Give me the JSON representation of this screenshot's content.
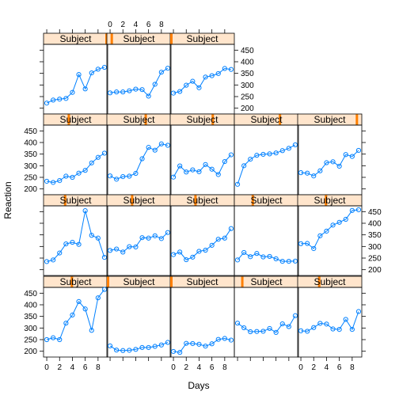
{
  "chart_data": {
    "type": "line",
    "xlabel": "Days",
    "ylabel": "Reaction",
    "strip_label": "Subject",
    "xlim": [
      -0.5,
      9.5
    ],
    "ylim": [
      175,
      475
    ],
    "x_ticks": [
      0,
      2,
      4,
      6,
      8
    ],
    "y_ticks": [
      200,
      250,
      300,
      350,
      400,
      450
    ],
    "x": [
      0,
      1,
      2,
      3,
      4,
      5,
      6,
      7,
      8,
      9
    ],
    "colors": {
      "strip_bg": "#ffe5cc",
      "strip_marker": "#ff7f00",
      "line": "#0080ff"
    },
    "panels": [
      {
        "row": 0,
        "col": 0,
        "subject_level": 1.0,
        "values": [
          222,
          235,
          239,
          242,
          268,
          345,
          283,
          352,
          368,
          376
        ]
      },
      {
        "row": 0,
        "col": 1,
        "subject_level": 0.06,
        "values": [
          266,
          270,
          270,
          275,
          282,
          280,
          252,
          303,
          355,
          372
        ]
      },
      {
        "row": 0,
        "col": 2,
        "subject_level": 0.0,
        "values": [
          265,
          272,
          299,
          316,
          288,
          334,
          340,
          349,
          371,
          367
        ]
      },
      {
        "row": 1,
        "col": 0,
        "subject_level": 0.39,
        "values": [
          233,
          228,
          236,
          255,
          250,
          268,
          280,
          312,
          336,
          354
        ]
      },
      {
        "row": 1,
        "col": 1,
        "subject_level": 0.61,
        "values": [
          256,
          242,
          253,
          255,
          267,
          330,
          379,
          367,
          394,
          388
        ]
      },
      {
        "row": 1,
        "col": 2,
        "subject_level": 0.67,
        "values": [
          251,
          299,
          273,
          282,
          274,
          305,
          285,
          262,
          318,
          347
        ]
      },
      {
        "row": 1,
        "col": 3,
        "subject_level": 0.72,
        "values": [
          220,
          300,
          328,
          345,
          349,
          351,
          355,
          365,
          375,
          390
        ]
      },
      {
        "row": 1,
        "col": 4,
        "subject_level": 0.94,
        "values": [
          270,
          268,
          256,
          278,
          313,
          317,
          298,
          348,
          340,
          366
        ]
      },
      {
        "row": 2,
        "col": 0,
        "subject_level": 0.33,
        "values": [
          235,
          242,
          272,
          311,
          318,
          309,
          454,
          348,
          336,
          253
        ]
      },
      {
        "row": 2,
        "col": 1,
        "subject_level": 0.39,
        "values": [
          283,
          289,
          276,
          299,
          298,
          338,
          336,
          346,
          334,
          360
        ]
      },
      {
        "row": 2,
        "col": 2,
        "subject_level": 0.39,
        "values": [
          265,
          276,
          243,
          254,
          279,
          284,
          305,
          331,
          336,
          377
        ]
      },
      {
        "row": 2,
        "col": 3,
        "subject_level": 0.28,
        "values": [
          242,
          274,
          256,
          270,
          255,
          257,
          247,
          236,
          236,
          237
        ]
      },
      {
        "row": 2,
        "col": 4,
        "subject_level": 0.44,
        "values": [
          312,
          313,
          291,
          346,
          366,
          392,
          404,
          417,
          455,
          458
        ]
      },
      {
        "row": 3,
        "col": 0,
        "subject_level": 0.44,
        "values": [
          250,
          258,
          250,
          321,
          356,
          414,
          382,
          290,
          430,
          466
        ]
      },
      {
        "row": 3,
        "col": 1,
        "subject_level": 0.0,
        "values": [
          223,
          205,
          203,
          204,
          208,
          216,
          216,
          221,
          227,
          238
        ]
      },
      {
        "row": 3,
        "col": 2,
        "subject_level": 0.0,
        "values": [
          199,
          195,
          234,
          233,
          230,
          222,
          232,
          251,
          255,
          248
        ]
      },
      {
        "row": 3,
        "col": 3,
        "subject_level": 0.11,
        "values": [
          321,
          301,
          284,
          285,
          286,
          298,
          281,
          318,
          306,
          353
        ]
      },
      {
        "row": 3,
        "col": 4,
        "subject_level": 0.33,
        "values": [
          288,
          286,
          302,
          320,
          317,
          296,
          294,
          337,
          294,
          371
        ]
      }
    ]
  }
}
